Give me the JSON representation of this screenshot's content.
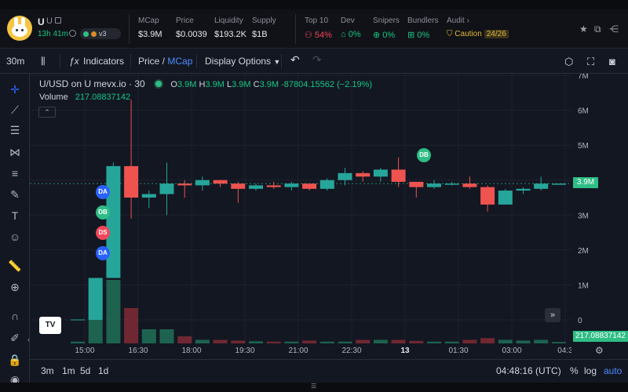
{
  "header": {
    "token_name": "U",
    "token_symbol": "U",
    "age": "13h 41m",
    "dex_label": "v3",
    "stats": [
      {
        "label": "MCap",
        "value": "$3.9M"
      },
      {
        "label": "Price",
        "value": "$0.0039"
      },
      {
        "label": "Liquidity",
        "value": "$193.2K"
      },
      {
        "label": "Supply",
        "value": "$1B"
      }
    ],
    "risk": [
      {
        "label": "Top 10",
        "value": "54%"
      },
      {
        "label": "Dev",
        "value": "0%"
      },
      {
        "label": "Snipers",
        "value": "0%"
      },
      {
        "label": "Bundlers",
        "value": "0%"
      }
    ],
    "audit_label": "Audit",
    "audit_chevron": "›",
    "caution_label": "Caution",
    "caution_score": "24/26",
    "colors": {
      "negative": "#f0475a",
      "positive": "#16c784",
      "caution": "#e0b93a"
    }
  },
  "toolbar": {
    "interval": "30m",
    "indicators_label": "Indicators",
    "price_label": "Price",
    "price_sep": " / ",
    "mcap_label": "MCap",
    "display_options_label": "Display Options",
    "display_options_arrow": "▼",
    "undo": "↶",
    "redo": "↷"
  },
  "chart": {
    "symbol_title": "U/USD on U mevx.io · 30",
    "ohlc": {
      "o_label": "O",
      "o": "3.9M",
      "h_label": "H",
      "h": "3.9M",
      "l_label": "L",
      "l": "3.9M",
      "c_label": "C",
      "c": "3.9M",
      "change": "-87804.15562 (−2.19%)"
    },
    "volume_label": "Volume",
    "volume_value": "217.08837142",
    "collapse_glyph": "⌃",
    "current_price_tag": "3.9M",
    "current_volume_tag": "217.08837142",
    "scroll_glyph": "»",
    "logo_text": "TV",
    "markers": [
      {
        "text": "DA",
        "color": "#2962ff"
      },
      {
        "text": "DB",
        "color": "#2ebd85"
      },
      {
        "text": "DS",
        "color": "#f0475a"
      },
      {
        "text": "DA",
        "color": "#2962ff"
      },
      {
        "text": "DB",
        "color": "#2ebd85"
      }
    ]
  },
  "chart_data": {
    "type": "candlestick",
    "y_ticks": [
      "7M",
      "6M",
      "5M",
      "4M",
      "3M",
      "2M",
      "1M",
      "0"
    ],
    "x_ticks": [
      "15:00",
      "16:30",
      "18:00",
      "19:30",
      "21:00",
      "22:30",
      "13",
      "01:30",
      "03:00",
      "04:3"
    ],
    "candles": [
      {
        "o": 0.0,
        "h": 0.0,
        "l": 0.0,
        "c": 0.0,
        "v": 0.05
      },
      {
        "o": 0.0,
        "h": 1.2,
        "l": 0.0,
        "c": 1.2,
        "v": 1.8
      },
      {
        "o": 1.2,
        "h": 4.5,
        "l": 1.2,
        "c": 4.4,
        "v": 1.8
      },
      {
        "o": 4.4,
        "h": 6.3,
        "l": 2.9,
        "c": 3.5,
        "v": 1.0
      },
      {
        "o": 3.5,
        "h": 3.7,
        "l": 3.2,
        "c": 3.6,
        "v": 0.4
      },
      {
        "o": 3.6,
        "h": 4.5,
        "l": 3.0,
        "c": 3.9,
        "v": 0.4
      },
      {
        "o": 3.9,
        "h": 4.0,
        "l": 3.5,
        "c": 3.85,
        "v": 0.2
      },
      {
        "o": 3.85,
        "h": 4.1,
        "l": 3.7,
        "c": 4.0,
        "v": 0.1
      },
      {
        "o": 4.0,
        "h": 4.0,
        "l": 3.8,
        "c": 3.9,
        "v": 0.1
      },
      {
        "o": 3.9,
        "h": 3.95,
        "l": 3.35,
        "c": 3.75,
        "v": 0.08
      },
      {
        "o": 3.75,
        "h": 3.9,
        "l": 3.7,
        "c": 3.85,
        "v": 0.06
      },
      {
        "o": 3.85,
        "h": 3.95,
        "l": 3.75,
        "c": 3.8,
        "v": 0.05
      },
      {
        "o": 3.8,
        "h": 3.95,
        "l": 3.7,
        "c": 3.9,
        "v": 0.05
      },
      {
        "o": 3.9,
        "h": 3.9,
        "l": 3.7,
        "c": 3.75,
        "v": 0.08
      },
      {
        "o": 3.75,
        "h": 4.05,
        "l": 3.7,
        "c": 4.0,
        "v": 0.05
      },
      {
        "o": 4.0,
        "h": 4.35,
        "l": 3.85,
        "c": 4.2,
        "v": 0.05
      },
      {
        "o": 4.2,
        "h": 4.25,
        "l": 3.95,
        "c": 4.1,
        "v": 0.1
      },
      {
        "o": 4.1,
        "h": 4.35,
        "l": 3.95,
        "c": 4.3,
        "v": 0.1
      },
      {
        "o": 4.3,
        "h": 4.65,
        "l": 3.8,
        "c": 3.95,
        "v": 0.1
      },
      {
        "o": 3.95,
        "h": 3.95,
        "l": 3.5,
        "c": 3.8,
        "v": 0.07
      },
      {
        "o": 3.8,
        "h": 4.0,
        "l": 3.75,
        "c": 3.9,
        "v": 0.05
      },
      {
        "o": 3.9,
        "h": 3.95,
        "l": 3.85,
        "c": 3.9,
        "v": 0.05
      },
      {
        "o": 3.9,
        "h": 4.1,
        "l": 3.75,
        "c": 3.8,
        "v": 0.1
      },
      {
        "o": 3.8,
        "h": 3.85,
        "l": 3.1,
        "c": 3.3,
        "v": 0.15
      },
      {
        "o": 3.3,
        "h": 3.75,
        "l": 3.3,
        "c": 3.7,
        "v": 0.1
      },
      {
        "o": 3.7,
        "h": 3.8,
        "l": 3.6,
        "c": 3.75,
        "v": 0.08
      },
      {
        "o": 3.75,
        "h": 4.1,
        "l": 3.7,
        "c": 3.9,
        "v": 0.1
      },
      {
        "o": 3.9,
        "h": 3.9,
        "l": 3.9,
        "c": 3.9,
        "v": 0.04
      }
    ]
  },
  "bottom": {
    "ranges": [
      "3m",
      "1m",
      "5d",
      "1d"
    ],
    "time": "04:48:16 (UTC)",
    "pct": "%",
    "log": "log",
    "auto": "auto"
  }
}
